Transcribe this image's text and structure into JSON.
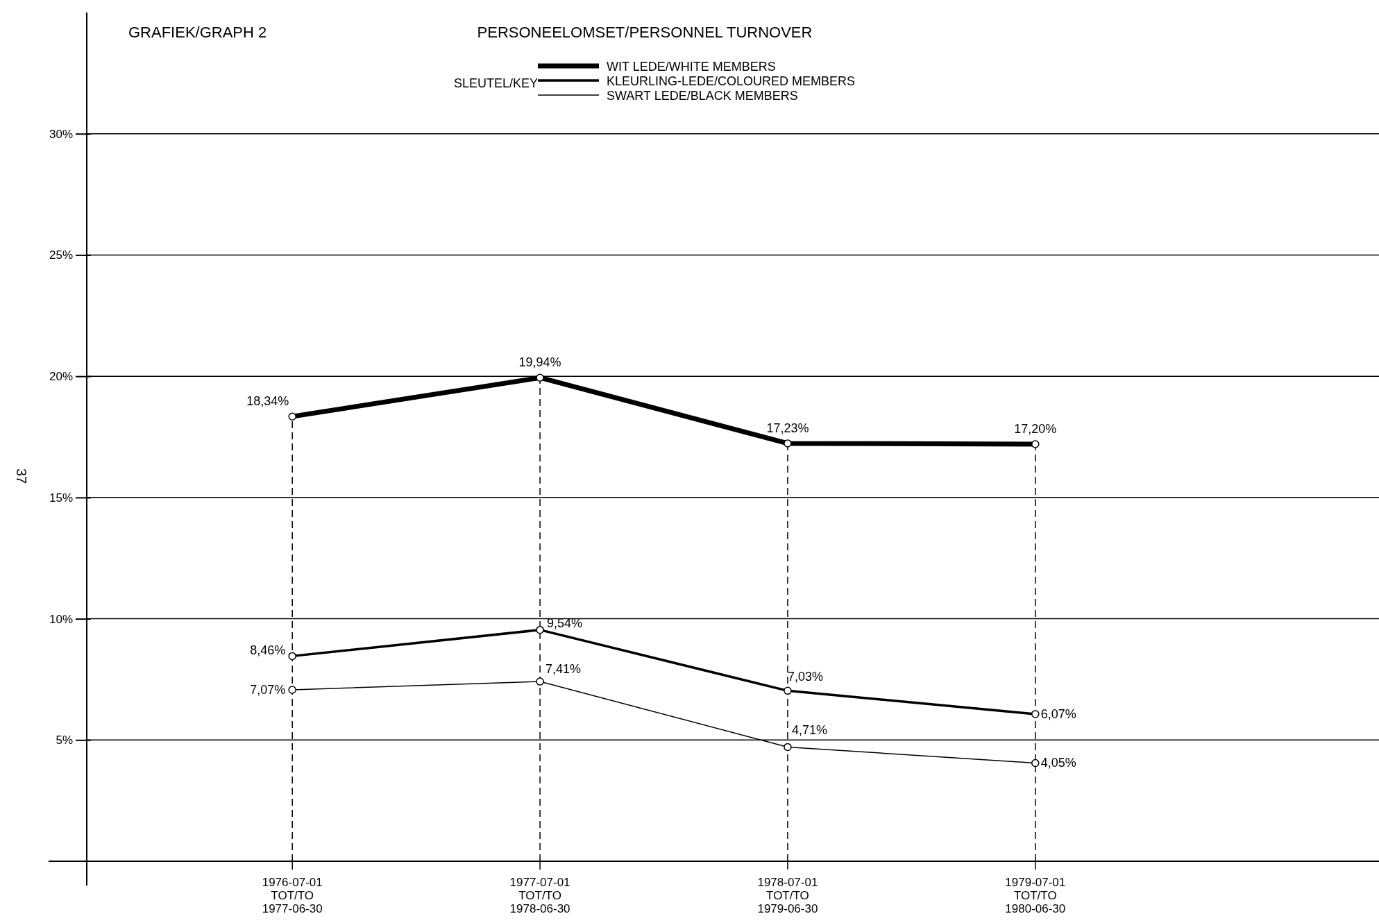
{
  "chart_data": {
    "type": "line",
    "title": "PERSONEELOMSET/PERSONNEL TURNOVER",
    "legend_title": "SLEUTEL/KEY",
    "legend": "top",
    "marker": "circle",
    "line_style": "solid",
    "grid": "y",
    "annotations": [
      "GRAFIEK/GRAPH 2",
      "37"
    ],
    "categories": [
      "1976-07-01\nTOT/TO\n1977-06-30",
      "1977-07-01\nTOT/TO\n1978-06-30",
      "1978-07-01\nTOT/TO\n1979-06-30",
      "1979-07-01\nTOT/TO\n1980-06-30"
    ],
    "ylim": [
      0,
      35
    ],
    "yticks": [
      {
        "value": 5,
        "label": "5%"
      },
      {
        "value": 10,
        "label": "10%"
      },
      {
        "value": 15,
        "label": "15%"
      },
      {
        "value": 20,
        "label": "20%"
      },
      {
        "value": 25,
        "label": "25%"
      },
      {
        "value": 30,
        "label": "30%"
      }
    ],
    "ref_lines": [
      {
        "axis": "x",
        "value": "1976-07-01\nTOT/TO\n1977-06-30",
        "line_style": "dashed",
        "color": "#000000"
      },
      {
        "axis": "x",
        "value": "1977-07-01\nTOT/TO\n1978-06-30",
        "line_style": "dashed",
        "color": "#000000"
      },
      {
        "axis": "x",
        "value": "1978-07-01\nTOT/TO\n1979-06-30",
        "line_style": "dashed",
        "color": "#000000"
      },
      {
        "axis": "x",
        "value": "1979-07-01\nTOT/TO\n1980-06-30",
        "line_style": "dashed",
        "color": "#000000"
      }
    ],
    "series": [
      {
        "name": "WIT LEDE/WHITE MEMBERS",
        "color": "#000000",
        "values": [
          18.34,
          19.94,
          17.23,
          17.2
        ],
        "value_labels": [
          "18,34%",
          "19,94%",
          "17,23%",
          "17,20%"
        ]
      },
      {
        "name": "KLEURLING-LEDE/COLOURED MEMBERS",
        "color": "#000000",
        "values": [
          8.46,
          9.54,
          7.03,
          6.07
        ],
        "value_labels": [
          "8,46%",
          "9,54%",
          "7,03%",
          "6,07%"
        ]
      },
      {
        "name": "SWART LEDE/BLACK MEMBERS",
        "color": "#000000",
        "values": [
          7.07,
          7.41,
          4.71,
          4.05
        ],
        "value_labels": [
          "7,07%",
          "7,41%",
          "4,71%",
          "4,05%"
        ]
      }
    ]
  }
}
